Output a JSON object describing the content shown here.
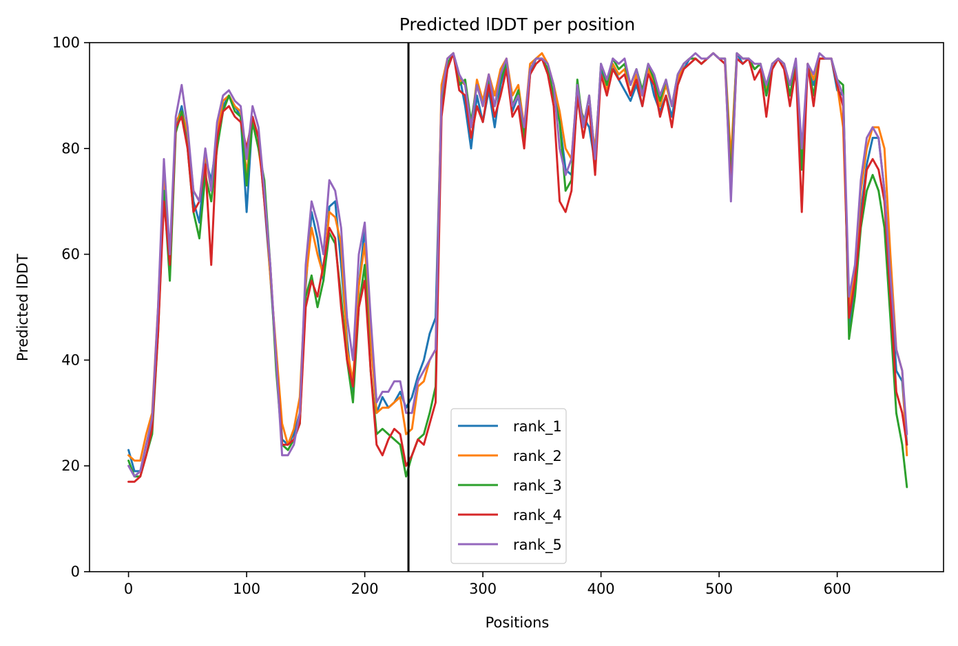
{
  "chart_data": {
    "type": "line",
    "title": "Predicted lDDT per position",
    "xlabel": "Positions",
    "ylabel": "Predicted lDDT",
    "xlim": [
      -33,
      690
    ],
    "ylim": [
      0,
      100
    ],
    "xticks": [
      0,
      100,
      200,
      300,
      400,
      500,
      600
    ],
    "yticks": [
      0,
      20,
      40,
      60,
      80,
      100
    ],
    "grid": false,
    "legend_position": "lower-center",
    "vertical_line": {
      "x": 237,
      "color": "#000000"
    },
    "x": [
      0,
      5,
      10,
      15,
      20,
      25,
      30,
      35,
      40,
      45,
      50,
      55,
      60,
      65,
      70,
      75,
      80,
      85,
      90,
      95,
      100,
      105,
      110,
      115,
      120,
      125,
      130,
      135,
      140,
      145,
      150,
      155,
      160,
      165,
      170,
      175,
      180,
      185,
      190,
      195,
      200,
      205,
      210,
      215,
      220,
      225,
      230,
      235,
      240,
      245,
      250,
      255,
      260,
      265,
      270,
      275,
      280,
      285,
      290,
      295,
      300,
      305,
      310,
      315,
      320,
      325,
      330,
      335,
      340,
      345,
      350,
      355,
      360,
      365,
      370,
      375,
      380,
      385,
      390,
      395,
      400,
      405,
      410,
      415,
      420,
      425,
      430,
      435,
      440,
      445,
      450,
      455,
      460,
      465,
      470,
      475,
      480,
      485,
      490,
      495,
      500,
      505,
      510,
      515,
      520,
      525,
      530,
      535,
      540,
      545,
      550,
      555,
      560,
      565,
      570,
      575,
      580,
      585,
      590,
      595,
      600,
      605,
      610,
      615,
      620,
      625,
      630,
      635,
      640,
      645,
      650,
      655,
      659
    ],
    "series": [
      {
        "name": "rank_1",
        "color": "#1f77b4",
        "values": [
          23,
          19,
          19,
          24,
          28,
          48,
          76,
          56,
          84,
          88,
          82,
          70,
          66,
          78,
          74,
          82,
          88,
          90,
          88,
          86,
          68,
          86,
          82,
          70,
          56,
          40,
          25,
          24,
          26,
          30,
          54,
          68,
          63,
          55,
          69,
          70,
          58,
          44,
          33,
          54,
          65,
          45,
          30,
          33,
          31,
          32,
          34,
          31,
          33,
          37,
          40,
          45,
          48,
          90,
          97,
          98,
          94,
          88,
          80,
          90,
          85,
          91,
          84,
          92,
          96,
          87,
          90,
          82,
          94,
          97,
          97,
          95,
          92,
          85,
          76,
          75,
          89,
          86,
          84,
          77,
          95,
          92,
          96,
          93,
          91,
          89,
          92,
          88,
          95,
          90,
          87,
          90,
          86,
          92,
          95,
          97,
          97,
          96,
          97,
          98,
          97,
          96,
          77,
          98,
          96,
          97,
          95,
          96,
          90,
          95,
          97,
          96,
          90,
          96,
          76,
          95,
          92,
          97,
          97,
          97,
          91,
          90,
          46,
          55,
          68,
          77,
          82,
          82,
          72,
          55,
          38,
          36,
          24
        ]
      },
      {
        "name": "rank_2",
        "color": "#ff7f0e",
        "values": [
          22,
          21,
          21,
          26,
          30,
          50,
          75,
          58,
          85,
          87,
          83,
          72,
          70,
          79,
          72,
          83,
          89,
          90,
          88,
          87,
          75,
          85,
          80,
          72,
          56,
          42,
          28,
          24,
          27,
          33,
          55,
          65,
          60,
          56,
          68,
          67,
          62,
          42,
          36,
          54,
          62,
          44,
          30,
          31,
          31,
          32,
          33,
          26,
          27,
          35,
          36,
          40,
          42,
          92,
          97,
          98,
          93,
          92,
          84,
          93,
          89,
          94,
          90,
          95,
          97,
          90,
          92,
          84,
          96,
          97,
          98,
          96,
          92,
          87,
          80,
          78,
          92,
          85,
          87,
          80,
          94,
          91,
          96,
          94,
          95,
          90,
          94,
          90,
          95,
          92,
          88,
          92,
          88,
          93,
          96,
          97,
          97,
          96,
          97,
          98,
          97,
          97,
          78,
          98,
          97,
          97,
          95,
          96,
          91,
          96,
          97,
          96,
          92,
          96,
          78,
          96,
          93,
          97,
          97,
          97,
          92,
          84,
          50,
          57,
          72,
          80,
          84,
          84,
          80,
          60,
          42,
          38,
          22
        ]
      },
      {
        "name": "rank_3",
        "color": "#2ca02c",
        "values": [
          21,
          18,
          18,
          22,
          26,
          45,
          72,
          55,
          83,
          87,
          80,
          68,
          63,
          75,
          70,
          80,
          87,
          90,
          87,
          86,
          73,
          85,
          80,
          74,
          58,
          38,
          24,
          23,
          25,
          28,
          52,
          56,
          50,
          55,
          64,
          62,
          52,
          40,
          32,
          50,
          58,
          38,
          26,
          27,
          26,
          25,
          24,
          18,
          22,
          25,
          26,
          30,
          35,
          88,
          96,
          98,
          92,
          93,
          85,
          92,
          88,
          93,
          88,
          93,
          96,
          88,
          91,
          82,
          95,
          97,
          97,
          95,
          90,
          85,
          72,
          74,
          93,
          84,
          90,
          78,
          96,
          92,
          97,
          95,
          96,
          92,
          95,
          91,
          96,
          93,
          89,
          93,
          88,
          94,
          96,
          97,
          97,
          96,
          97,
          98,
          97,
          97,
          74,
          98,
          97,
          97,
          95,
          96,
          90,
          96,
          97,
          96,
          90,
          96,
          76,
          96,
          90,
          97,
          97,
          97,
          93,
          92,
          44,
          52,
          65,
          72,
          75,
          72,
          65,
          48,
          30,
          24,
          16
        ]
      },
      {
        "name": "rank_4",
        "color": "#d62728",
        "values": [
          17,
          17,
          18,
          22,
          27,
          45,
          70,
          58,
          84,
          86,
          80,
          68,
          70,
          77,
          58,
          82,
          87,
          88,
          86,
          85,
          80,
          86,
          82,
          70,
          58,
          40,
          24,
          24,
          25,
          28,
          50,
          55,
          52,
          58,
          65,
          63,
          50,
          40,
          35,
          50,
          55,
          38,
          24,
          22,
          25,
          27,
          26,
          20,
          22,
          25,
          24,
          28,
          32,
          86,
          95,
          98,
          91,
          90,
          82,
          88,
          85,
          92,
          86,
          90,
          95,
          86,
          88,
          80,
          94,
          96,
          97,
          94,
          88,
          70,
          68,
          72,
          90,
          82,
          88,
          75,
          94,
          90,
          95,
          93,
          94,
          90,
          93,
          88,
          94,
          92,
          86,
          90,
          84,
          92,
          95,
          96,
          97,
          96,
          97,
          98,
          97,
          96,
          72,
          97,
          96,
          97,
          93,
          95,
          86,
          95,
          97,
          95,
          88,
          95,
          68,
          96,
          88,
          97,
          97,
          97,
          92,
          88,
          48,
          55,
          66,
          76,
          78,
          76,
          70,
          52,
          34,
          30,
          24
        ]
      },
      {
        "name": "rank_5",
        "color": "#9467bd",
        "values": [
          20,
          18,
          19,
          24,
          29,
          50,
          78,
          60,
          86,
          92,
          84,
          72,
          70,
          80,
          72,
          85,
          90,
          91,
          89,
          88,
          78,
          88,
          84,
          72,
          58,
          40,
          22,
          22,
          24,
          30,
          58,
          70,
          66,
          60,
          74,
          72,
          65,
          48,
          40,
          60,
          66,
          48,
          32,
          34,
          34,
          36,
          36,
          30,
          30,
          36,
          38,
          40,
          42,
          90,
          97,
          98,
          94,
          92,
          84,
          92,
          88,
          94,
          88,
          94,
          97,
          88,
          90,
          84,
          95,
          97,
          97,
          96,
          92,
          80,
          75,
          78,
          92,
          84,
          90,
          78,
          96,
          93,
          97,
          96,
          97,
          92,
          95,
          90,
          96,
          94,
          90,
          93,
          88,
          94,
          96,
          97,
          98,
          97,
          97,
          98,
          97,
          97,
          70,
          98,
          97,
          97,
          96,
          96,
          92,
          96,
          97,
          96,
          92,
          97,
          80,
          96,
          94,
          98,
          97,
          97,
          93,
          90,
          52,
          58,
          74,
          82,
          84,
          82,
          72,
          56,
          42,
          38,
          26
        ]
      }
    ]
  }
}
